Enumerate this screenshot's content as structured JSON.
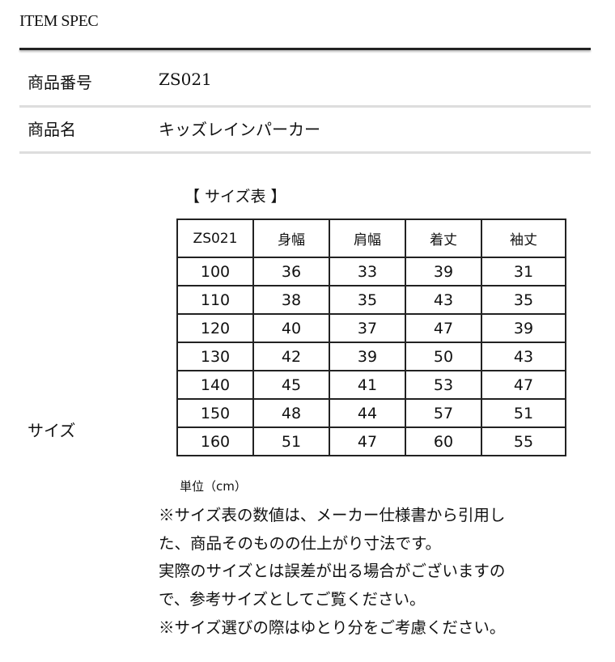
{
  "title": "ITEM SPEC",
  "spec": [
    {
      "label": "商品番号",
      "value": "ZS021"
    },
    {
      "label": "商品名",
      "value": "キッズレインパーカー"
    },
    {
      "label": "サイズ"
    }
  ],
  "size_table": {
    "caption": "【 サイズ表 】",
    "headers": [
      "ZS021",
      "身幅",
      "肩幅",
      "着丈",
      "袖丈"
    ],
    "rows": [
      [
        "100",
        "36",
        "33",
        "39",
        "31"
      ],
      [
        "110",
        "38",
        "35",
        "43",
        "35"
      ],
      [
        "120",
        "40",
        "37",
        "47",
        "39"
      ],
      [
        "130",
        "42",
        "39",
        "50",
        "43"
      ],
      [
        "140",
        "45",
        "41",
        "53",
        "47"
      ],
      [
        "150",
        "48",
        "44",
        "57",
        "51"
      ],
      [
        "160",
        "51",
        "47",
        "60",
        "55"
      ]
    ],
    "unit": "単位（cm）"
  },
  "notes": [
    "※サイズ表の数値は、メーカー仕様書から引用し",
    "た、商品そのものの仕上がり寸法です。",
    "実際のサイズとは誤差が出る場合がございますの",
    "で、参考サイズとしてご覧ください。",
    "※サイズ選びの際はゆとり分をご考慮ください。"
  ]
}
